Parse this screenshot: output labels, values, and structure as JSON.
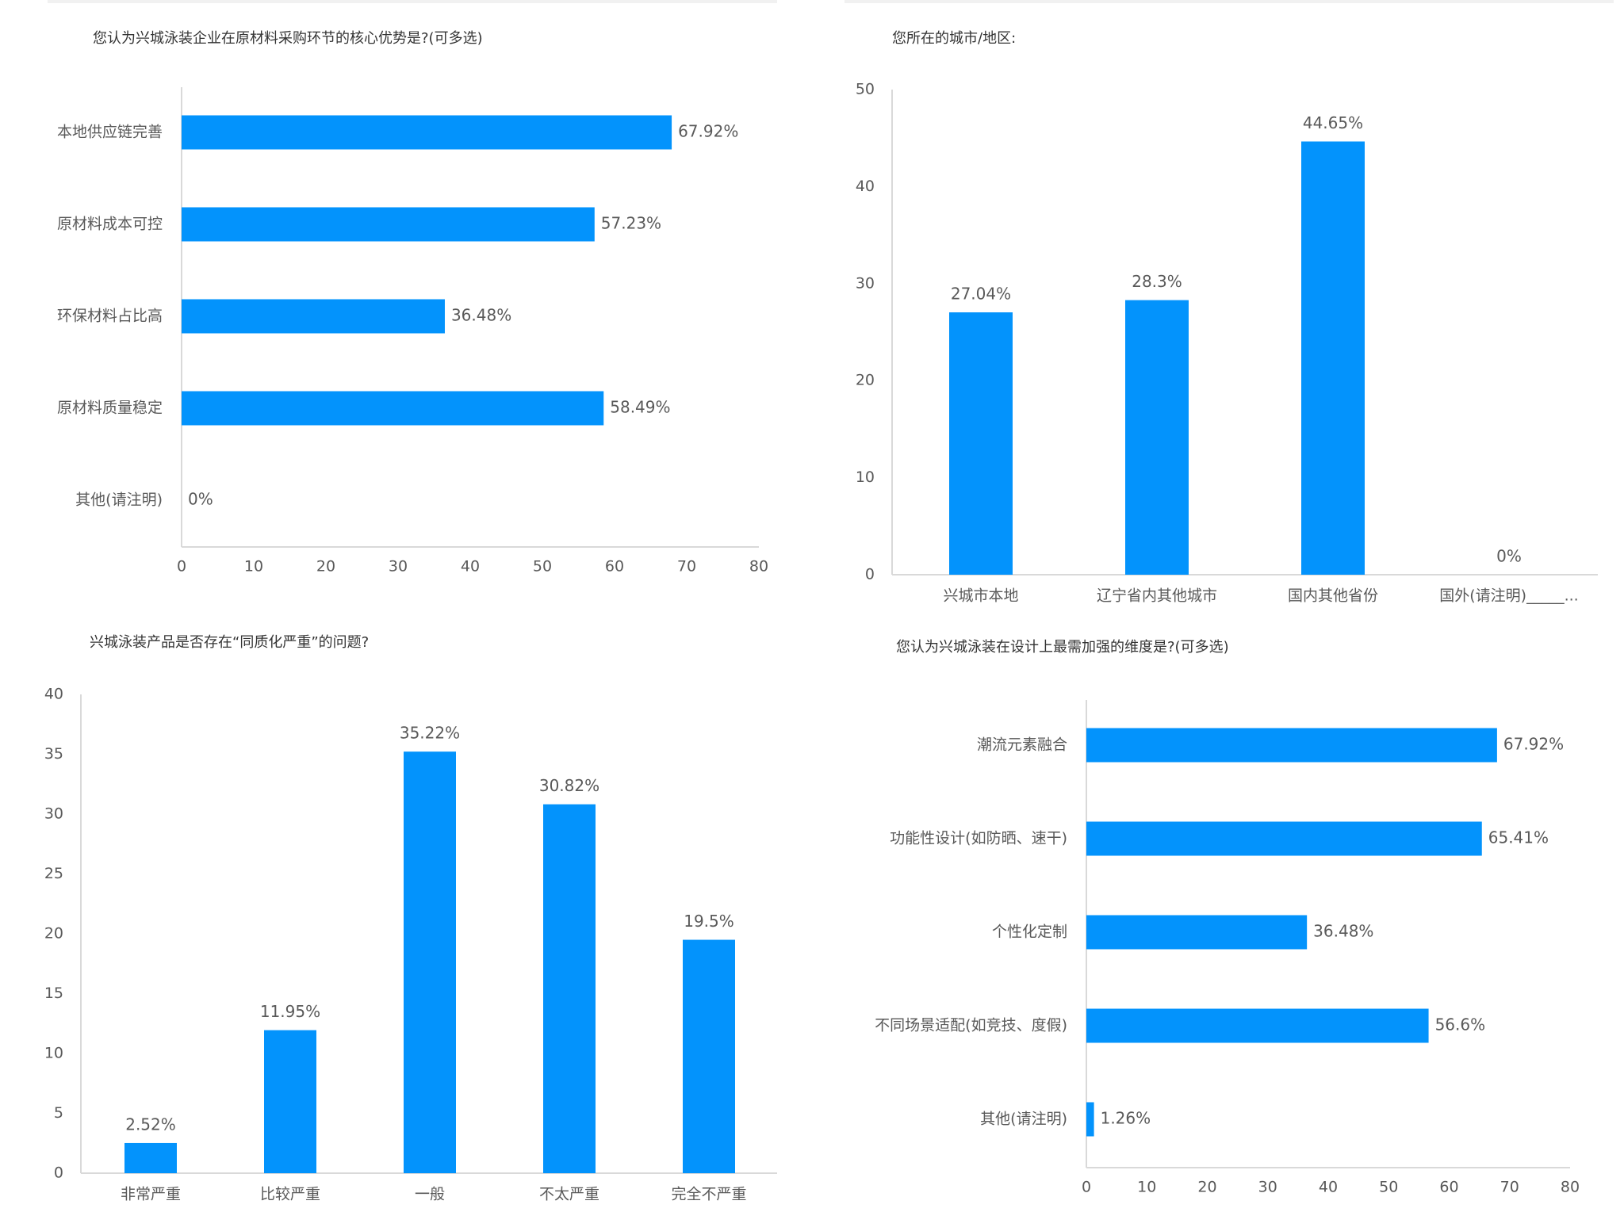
{
  "colors": {
    "bar": "#0393fc",
    "axis": "#d9d9d9",
    "text": "#595959",
    "title": "#333333"
  },
  "chart_data": [
    {
      "type": "bar",
      "orientation": "horizontal",
      "title": "您认为兴城泳装企业在原材料采购环节的核心优势是?(可多选)",
      "categories": [
        "本地供应链完善",
        "原材料成本可控",
        "环保材料占比高",
        "原材料质量稳定",
        "其他(请注明)"
      ],
      "values": [
        67.92,
        57.23,
        36.48,
        58.49,
        0
      ],
      "labels": [
        "67.92%",
        "57.23%",
        "36.48%",
        "58.49%",
        "0%"
      ],
      "xlim": [
        0,
        80
      ],
      "ticks": [
        "0",
        "10",
        "20",
        "30",
        "40",
        "50",
        "60",
        "70",
        "80"
      ]
    },
    {
      "type": "bar",
      "orientation": "vertical",
      "title": "您所在的城市/地区:",
      "categories": [
        "兴城市本地",
        "辽宁省内其他城市",
        "国内其他省份",
        "国外(请注明)_____..."
      ],
      "values": [
        27.04,
        28.3,
        44.65,
        0
      ],
      "labels": [
        "27.04%",
        "28.3%",
        "44.65%",
        "0%"
      ],
      "ylim": [
        0,
        50
      ],
      "ticks": [
        "0",
        "10",
        "20",
        "30",
        "40",
        "50"
      ]
    },
    {
      "type": "bar",
      "orientation": "vertical",
      "title": "兴城泳装产品是否存在“同质化严重”的问题?",
      "categories": [
        "非常严重",
        "比较严重",
        "一般",
        "不太严重",
        "完全不严重"
      ],
      "values": [
        2.52,
        11.95,
        35.22,
        30.82,
        19.5
      ],
      "labels": [
        "2.52%",
        "11.95%",
        "35.22%",
        "30.82%",
        "19.5%"
      ],
      "ylim": [
        0,
        40
      ],
      "ticks": [
        "0",
        "5",
        "10",
        "15",
        "20",
        "25",
        "30",
        "35",
        "40"
      ]
    },
    {
      "type": "bar",
      "orientation": "horizontal",
      "title": "您认为兴城泳装在设计上最需加强的维度是?(可多选)",
      "categories": [
        "潮流元素融合",
        "功能性设计(如防晒、速干)",
        "个性化定制",
        "不同场景适配(如竞技、度假)",
        "其他(请注明)"
      ],
      "values": [
        67.92,
        65.41,
        36.48,
        56.6,
        1.26
      ],
      "labels": [
        "67.92%",
        "65.41%",
        "36.48%",
        "56.6%",
        "1.26%"
      ],
      "xlim": [
        0,
        80
      ],
      "ticks": [
        "0",
        "10",
        "20",
        "30",
        "40",
        "50",
        "60",
        "70",
        "80"
      ]
    }
  ]
}
